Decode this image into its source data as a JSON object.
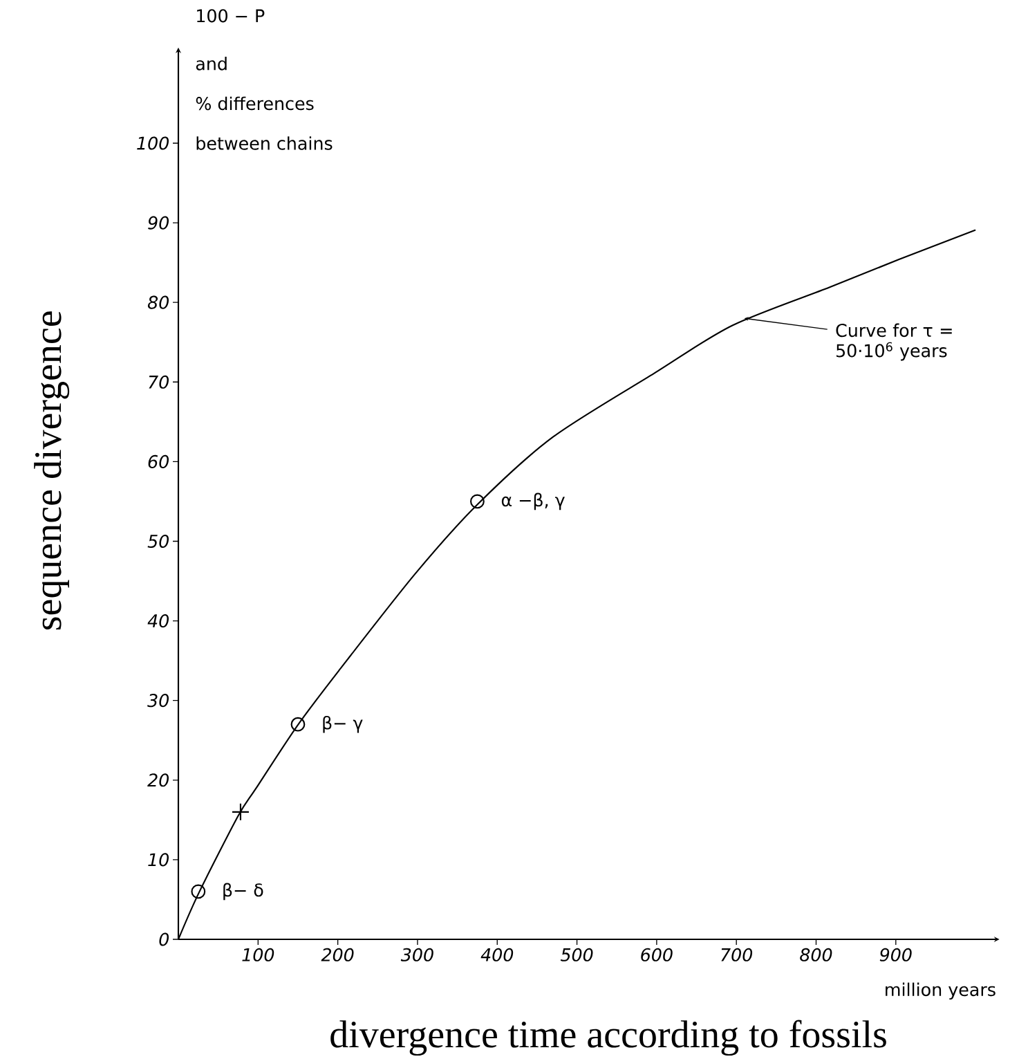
{
  "chart_data": {
    "type": "line",
    "xlabel": "divergence time according to fossils",
    "ylabel": "sequence divergence",
    "xlim": [
      0,
      1030
    ],
    "ylim": [
      0,
      112
    ],
    "xticks": [
      100,
      200,
      300,
      400,
      500,
      600,
      700,
      800,
      900
    ],
    "yticks": [
      0,
      10,
      20,
      30,
      40,
      50,
      60,
      70,
      80,
      90,
      100
    ],
    "grid": false,
    "series": [
      {
        "color": "#000000",
        "marker": "none",
        "line_style": "solid",
        "x": [
          0,
          26,
          75,
          97,
          149,
          201,
          297,
          375,
          470,
          597,
          695,
          817,
          904,
          1000
        ],
        "values": [
          0,
          5.9,
          15.5,
          18.9,
          26.8,
          33.7,
          45.9,
          54.6,
          63.1,
          71.1,
          77.1,
          81.9,
          85.4,
          89.1
        ]
      },
      {
        "type": "scatter",
        "color": "#000000",
        "marker": "circle",
        "x": [
          25,
          150,
          375
        ],
        "values": [
          6,
          27,
          55
        ]
      },
      {
        "type": "scatter",
        "color": "#000000",
        "marker": "cross",
        "x": [
          78
        ],
        "values": [
          16
        ]
      }
    ],
    "annotations": [
      "100 − P",
      "and",
      "% differences",
      "between chains",
      "million years",
      {
        "text": "β− δ",
        "x": 25,
        "y": 6
      },
      {
        "text": "β− γ",
        "x": 150,
        "y": 27
      },
      {
        "text": "α −β, γ",
        "x": 375,
        "y": 55
      },
      {
        "text": "Curve for τ = 50·10$^{6}$ years",
        "x": 710,
        "y": 78
      }
    ]
  }
}
